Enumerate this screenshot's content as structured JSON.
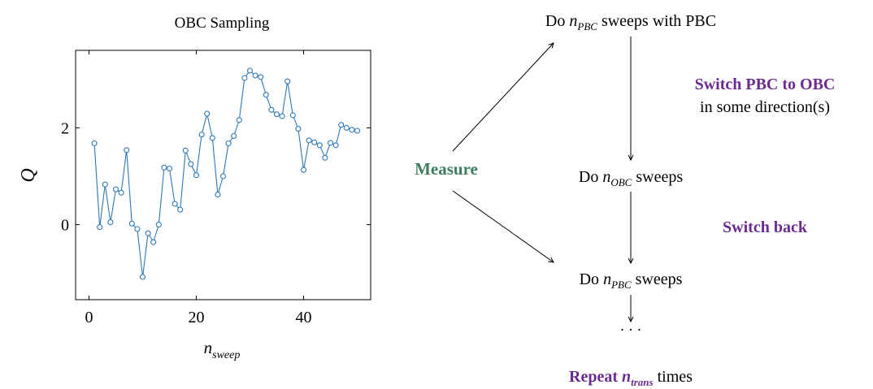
{
  "chart_data": {
    "type": "line",
    "title": "OBC Sampling",
    "xlabel": {
      "main": "n",
      "sub": "sweep"
    },
    "ylabel": "Q",
    "xlim": [
      -2.5,
      52.5
    ],
    "ylim": [
      -1.55,
      3.6
    ],
    "xticks": [
      0,
      20,
      40
    ],
    "yticks": [
      0,
      2
    ],
    "grid": false,
    "marker": "circle",
    "color": "#2f78b8",
    "series": [
      {
        "x": [
          1,
          2,
          3,
          4,
          5,
          6,
          7,
          8,
          9,
          10,
          11,
          12,
          13,
          14,
          15,
          16,
          17,
          18,
          19,
          20,
          21,
          22,
          23,
          24,
          25,
          26,
          27,
          28,
          29,
          30,
          31,
          32,
          33,
          34,
          35,
          36,
          37,
          38,
          39,
          40,
          41,
          42,
          43,
          44,
          45,
          46,
          47,
          48,
          49,
          50
        ],
        "values": [
          1.68,
          -0.05,
          0.83,
          0.05,
          0.73,
          0.66,
          1.54,
          0.02,
          -0.09,
          -1.08,
          -0.18,
          -0.36,
          0.0,
          1.18,
          1.16,
          0.43,
          0.31,
          1.53,
          1.25,
          1.02,
          1.86,
          2.29,
          1.79,
          0.62,
          1.0,
          1.68,
          1.83,
          2.16,
          3.03,
          3.18,
          3.08,
          3.05,
          2.68,
          2.37,
          2.28,
          2.24,
          2.96,
          2.26,
          1.98,
          1.13,
          1.74,
          1.7,
          1.64,
          1.38,
          1.69,
          1.64,
          2.06,
          2.0,
          1.96,
          1.94
        ]
      }
    ]
  },
  "diagram": {
    "colors": {
      "green": "#3f7d5f",
      "purple": "#6a2c8e"
    },
    "measure": "Measure",
    "step1": {
      "pre": "Do ",
      "n": "n",
      "sub": "PBC",
      "post": " sweeps with PBC"
    },
    "switch_pbc": {
      "line1": "Switch PBC to OBC",
      "line2": "in some direction(s)"
    },
    "step2": {
      "pre": "Do ",
      "n": "n",
      "sub": "OBC",
      "post": " sweeps"
    },
    "switch_back": "Switch back",
    "step3": {
      "pre": "Do ",
      "n": "n",
      "sub": "PBC",
      "post": " sweeps"
    },
    "ellipsis": "· · ·",
    "repeat": {
      "bold": "Repeat ",
      "n": "n",
      "sub": "trans",
      "post": " times"
    }
  }
}
